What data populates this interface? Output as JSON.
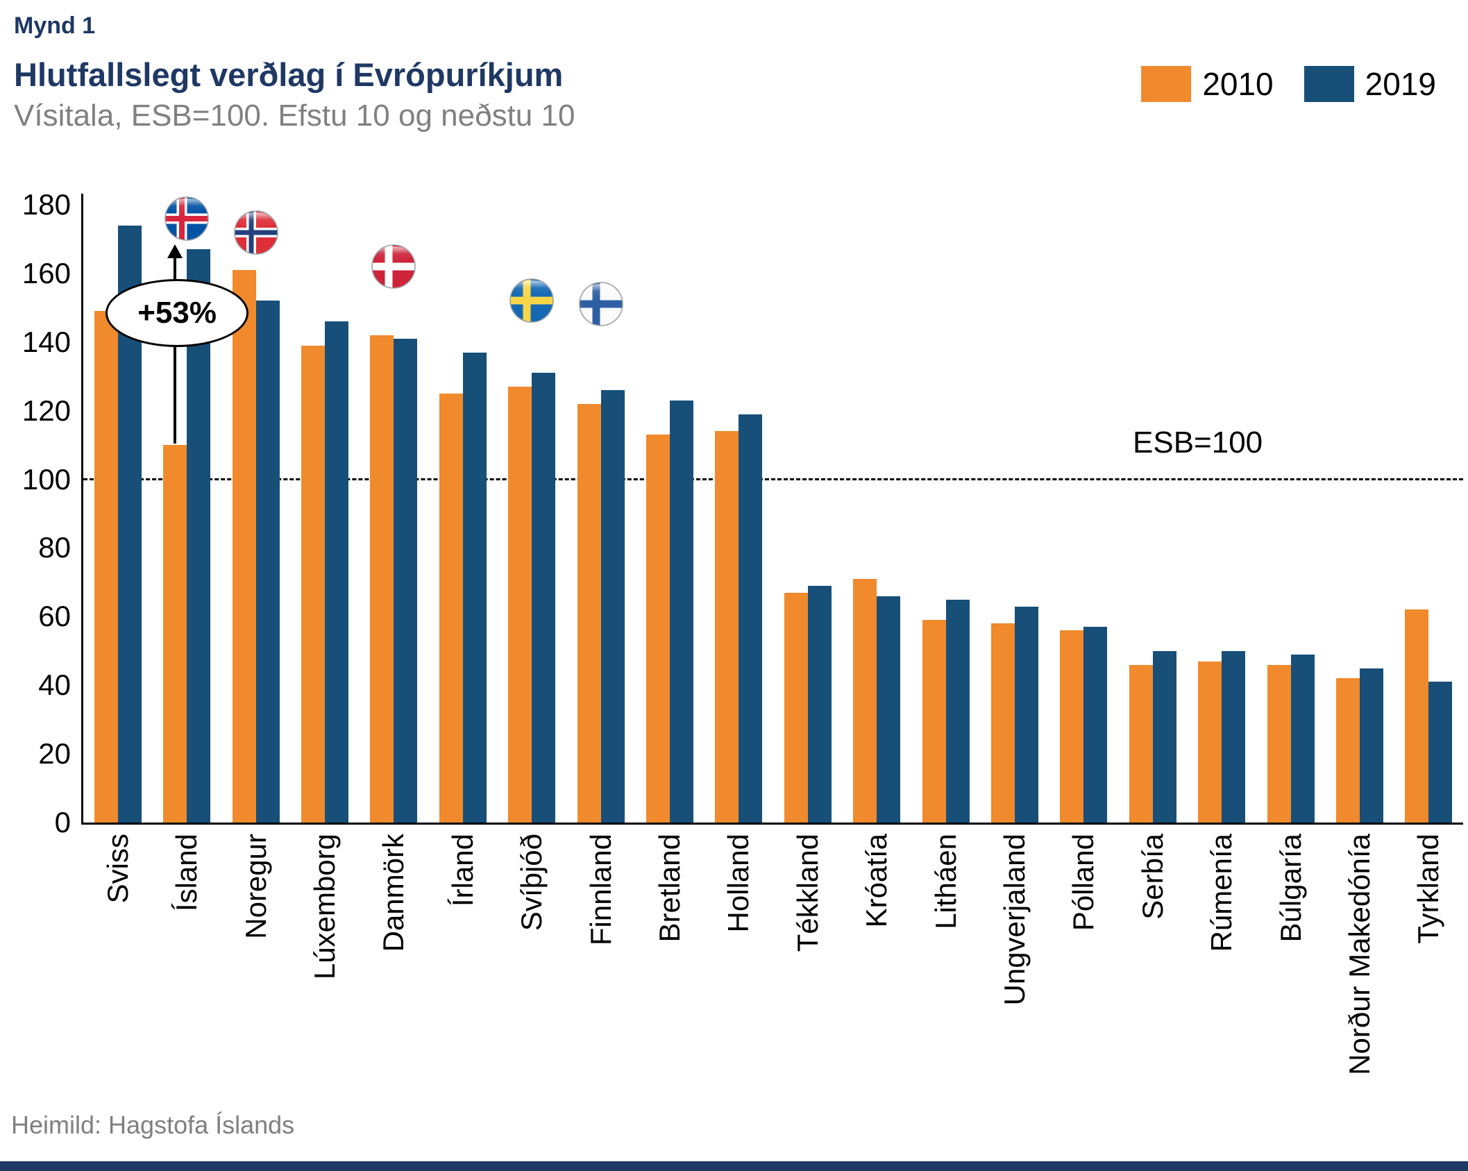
{
  "header": {
    "figure_label": "Mynd 1",
    "title": "Hlutfallslegt verðlag í Evrópuríkjum",
    "subtitle": "Vísitala, ESB=100. Efstu 10 og neðstu 10"
  },
  "chart_data": {
    "type": "bar",
    "categories": [
      "Sviss",
      "Ísland",
      "Noregur",
      "Lúxemborg",
      "Danmörk",
      "Írland",
      "Svíþjóð",
      "Finnland",
      "Bretland",
      "Holland",
      "Tékkland",
      "Króatía",
      "Litháen",
      "Ungverjaland",
      "Pólland",
      "Serbía",
      "Rúmenía",
      "Búlgaría",
      "Norður Makedónía",
      "Tyrkland"
    ],
    "series": [
      {
        "name": "2010",
        "color": "#F08A2C",
        "values": [
          149,
          110,
          161,
          139,
          142,
          125,
          127,
          122,
          113,
          114,
          67,
          71,
          59,
          58,
          56,
          46,
          47,
          46,
          42,
          62
        ]
      },
      {
        "name": "2019",
        "color": "#174F79",
        "values": [
          174,
          167,
          152,
          146,
          141,
          137,
          131,
          126,
          123,
          119,
          69,
          66,
          65,
          63,
          57,
          50,
          50,
          49,
          45,
          41
        ]
      }
    ],
    "ylabel": "",
    "xlabel": "",
    "ylim": [
      0,
      180
    ],
    "yticks": [
      0,
      20,
      40,
      60,
      80,
      100,
      120,
      140,
      160,
      180
    ],
    "grid": false,
    "legend_position": "top-right",
    "reference_line": {
      "value": 100,
      "label": "ESB=100",
      "style": "dashed"
    },
    "annotation": {
      "text": "+53%",
      "country": "Ísland",
      "arrow_from_value": 110,
      "arrow_to_value": 168,
      "ellipse_center_value": 149
    },
    "flags": [
      {
        "country": "Ísland",
        "icon": "iceland-flag",
        "y_value": 176
      },
      {
        "country": "Noregur",
        "icon": "norway-flag",
        "y_value": 172
      },
      {
        "country": "Danmörk",
        "icon": "denmark-flag",
        "y_value": 162
      },
      {
        "country": "Svíþjóð",
        "icon": "sweden-flag",
        "y_value": 152
      },
      {
        "country": "Finnland",
        "icon": "finland-flag",
        "y_value": 151
      }
    ]
  },
  "footer": {
    "source": "Heimild: Hagstofa Íslands"
  }
}
